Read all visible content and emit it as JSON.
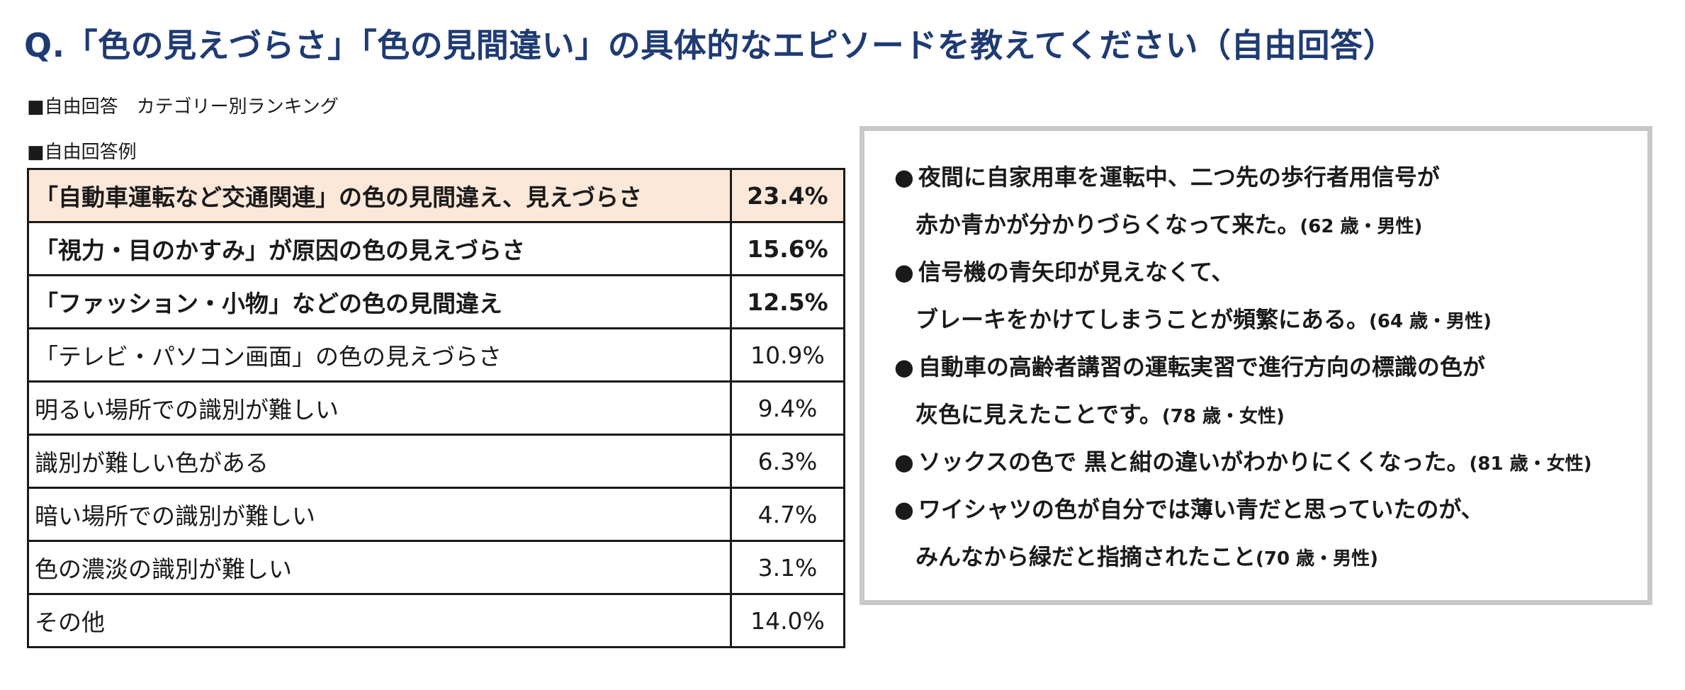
{
  "title": "Q.「色の見えづらさ」「色の見間違い」の具体的なエピソードを教えてください（自由回答）",
  "section_labels": {
    "ranking": "■自由回答　カテゴリー別ランキング",
    "examples": "■自由回答例"
  },
  "ranking": [
    {
      "category": "「自動車運転など交通関連」の色の見間違え、見えづらさ",
      "percent": "23.4%"
    },
    {
      "category": "「視力・目のかすみ」が原因の色の見えづらさ",
      "percent": "15.6%"
    },
    {
      "category": "「ファッション・小物」などの色の見間違え",
      "percent": "12.5%"
    },
    {
      "category": "「テレビ・パソコン画面」の色の見えづらさ",
      "percent": "10.9%"
    },
    {
      "category": "明るい場所での識別が難しい",
      "percent": "9.4%"
    },
    {
      "category": "識別が難しい色がある",
      "percent": "6.3%"
    },
    {
      "category": "暗い場所での識別が難しい",
      "percent": "4.7%"
    },
    {
      "category": "色の濃淡の識別が難しい",
      "percent": "3.1%"
    },
    {
      "category": "その他",
      "percent": "14.0%"
    }
  ],
  "examples": {
    "bullet": "●",
    "items": [
      {
        "line1": "夜間に自家用車を運転中、二つ先の歩行者用信号が",
        "line2": "赤か青かが分かりづらくなって来た。",
        "attribution": "(62 歳・男性)"
      },
      {
        "line1": "信号機の青矢印が見えなくて、",
        "line2": "ブレーキをかけてしまうことが頻繁にある。",
        "attribution": "(64 歳・男性)"
      },
      {
        "line1": "自動車の高齢者講習の運転実習で進行方向の標識の色が",
        "line2": "灰色に見えたことです。",
        "attribution": "(78 歳・女性)"
      },
      {
        "line1": "ソックスの色で  黒と紺の違いがわかりにくくなった。",
        "line2": "",
        "attribution": "(81 歳・女性)"
      },
      {
        "line1": "ワイシャツの色が自分では薄い青だと思っていたのが、",
        "line2": "みんなから緑だと指摘されたこと",
        "attribution": "(70 歳・男性)"
      }
    ]
  }
}
